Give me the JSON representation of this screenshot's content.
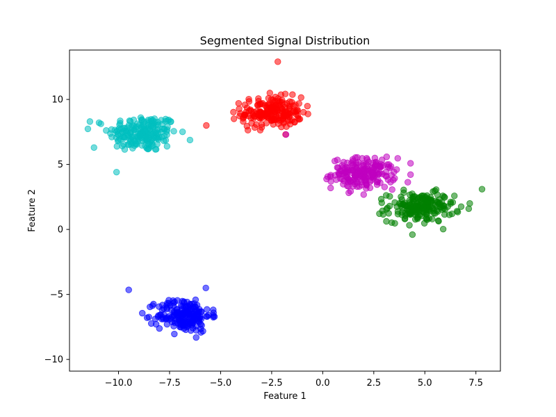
{
  "chart_data": {
    "type": "scatter",
    "title": "Segmented Signal Distribution",
    "xlabel": "Feature 1",
    "ylabel": "Feature 2",
    "xlim": [
      -12.4,
      8.7
    ],
    "ylim": [
      -10.9,
      13.8
    ],
    "x_ticks": [
      -10.0,
      -7.5,
      -5.0,
      -2.5,
      0.0,
      2.5,
      5.0,
      7.5
    ],
    "x_tick_labels": [
      "−10.0",
      "−7.5",
      "−5.0",
      "−2.5",
      "0.0",
      "2.5",
      "5.0",
      "7.5"
    ],
    "y_ticks": [
      -10,
      -5,
      0,
      5,
      10
    ],
    "y_tick_labels": [
      "−10",
      "−5",
      "0",
      "5",
      "10"
    ],
    "grid": false,
    "legend": "none",
    "marker_opacity": 0.55,
    "series": [
      {
        "color": "#00bfbf",
        "center": [
          -8.8,
          7.4
        ],
        "spread": [
          1.35,
          1.15
        ],
        "count": 200,
        "x_range": [
          -11.5,
          -6.5
        ],
        "y_range": [
          4.4,
          9.9
        ]
      },
      {
        "color": "#ff0000",
        "center": [
          -2.5,
          9.0
        ],
        "spread": [
          1.2,
          0.95
        ],
        "count": 200,
        "x_range": [
          -4.5,
          -0.1
        ],
        "y_range": [
          7.0,
          12.9
        ]
      },
      {
        "color": "#bf00bf",
        "center": [
          2.0,
          4.3
        ],
        "spread": [
          1.25,
          0.95
        ],
        "count": 200,
        "x_range": [
          -0.6,
          4.3
        ],
        "y_range": [
          2.5,
          7.3
        ]
      },
      {
        "color": "#008000",
        "center": [
          4.8,
          1.7
        ],
        "spread": [
          1.3,
          0.9
        ],
        "count": 200,
        "x_range": [
          2.0,
          7.8
        ],
        "y_range": [
          -0.4,
          4.3
        ]
      },
      {
        "color": "#0000ff",
        "center": [
          -6.8,
          -6.6
        ],
        "spread": [
          1.05,
          1.05
        ],
        "count": 200,
        "x_range": [
          -9.4,
          -4.3
        ],
        "y_range": [
          -9.8,
          -4.5
        ]
      }
    ],
    "extra_points": [
      {
        "x": -9.5,
        "y": -4.65,
        "color": "#0000ff"
      },
      {
        "x": -5.7,
        "y": 8.0,
        "color": "#ff0000"
      },
      {
        "x": -2.2,
        "y": 12.9,
        "color": "#ff0000"
      },
      {
        "x": -11.4,
        "y": 8.3,
        "color": "#00bfbf"
      },
      {
        "x": -11.2,
        "y": 6.3,
        "color": "#00bfbf"
      },
      {
        "x": 7.8,
        "y": 3.1,
        "color": "#008000"
      },
      {
        "x": 7.2,
        "y": 2.0,
        "color": "#008000"
      },
      {
        "x": -1.8,
        "y": 7.3,
        "color": "#bf00bf"
      }
    ]
  }
}
